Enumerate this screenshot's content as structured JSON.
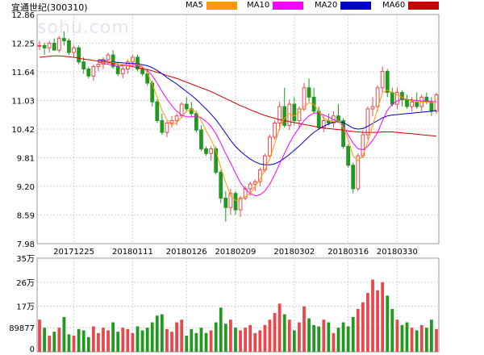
{
  "header": {
    "title": "宜通世纪",
    "code": "(300310)",
    "legend": [
      {
        "label": "MA5",
        "color": "#ff9900"
      },
      {
        "label": "MA10",
        "color": "#ff00ff"
      },
      {
        "label": "MA20",
        "color": "#0000cc"
      },
      {
        "label": "MA60",
        "color": "#cc0000"
      }
    ]
  },
  "watermark": "sohu.com",
  "colors": {
    "up": "#e8484c",
    "down": "#1f9a1f",
    "grid": "#d0d0d0"
  },
  "chart_data": {
    "type": "candlestick",
    "price_ticks": [
      "12.86",
      "12.25",
      "11.64",
      "11.03",
      "10.42",
      "9.81",
      "9.20",
      "8.59",
      "7.98"
    ],
    "price_range": [
      7.98,
      12.86
    ],
    "date_labels": [
      {
        "label": "20171225",
        "index": 7
      },
      {
        "label": "20180111",
        "index": 19
      },
      {
        "label": "20180126",
        "index": 30
      },
      {
        "label": "20180209",
        "index": 40
      },
      {
        "label": "20180302",
        "index": 52
      },
      {
        "label": "20180316",
        "index": 63
      },
      {
        "label": "20180330",
        "index": 73
      }
    ],
    "volume_ticks": [
      "35万",
      "26万",
      "17万",
      "89877",
      "0"
    ],
    "volume_range": [
      0,
      350000
    ],
    "candles": [
      [
        12.2,
        12.3,
        12.1,
        12.2
      ],
      [
        12.2,
        12.25,
        12.0,
        12.15
      ],
      [
        12.15,
        12.3,
        12.05,
        12.25
      ],
      [
        12.25,
        12.35,
        12.1,
        12.1
      ],
      [
        12.1,
        12.4,
        12.05,
        12.35
      ],
      [
        12.35,
        12.5,
        12.2,
        12.3
      ],
      [
        12.3,
        12.35,
        12.0,
        12.05
      ],
      [
        12.05,
        12.2,
        11.95,
        12.15
      ],
      [
        12.15,
        12.2,
        11.8,
        11.85
      ],
      [
        11.85,
        11.95,
        11.6,
        11.7
      ],
      [
        11.7,
        11.75,
        11.5,
        11.55
      ],
      [
        11.55,
        11.8,
        11.45,
        11.75
      ],
      [
        11.75,
        11.9,
        11.65,
        11.8
      ],
      [
        11.8,
        11.95,
        11.7,
        11.9
      ],
      [
        11.9,
        12.05,
        11.8,
        12.0
      ],
      [
        12.0,
        12.1,
        11.7,
        11.75
      ],
      [
        11.75,
        11.85,
        11.55,
        11.6
      ],
      [
        11.6,
        11.8,
        11.5,
        11.7
      ],
      [
        11.7,
        11.9,
        11.6,
        11.85
      ],
      [
        11.85,
        12.0,
        11.75,
        11.95
      ],
      [
        11.95,
        12.0,
        11.65,
        11.7
      ],
      [
        11.7,
        11.75,
        11.55,
        11.6
      ],
      [
        11.6,
        11.7,
        11.35,
        11.4
      ],
      [
        11.4,
        11.45,
        10.9,
        11.0
      ],
      [
        11.0,
        11.05,
        10.55,
        10.6
      ],
      [
        10.6,
        10.75,
        10.3,
        10.35
      ],
      [
        10.35,
        10.6,
        10.25,
        10.55
      ],
      [
        10.55,
        10.7,
        10.45,
        10.6
      ],
      [
        10.6,
        10.75,
        10.5,
        10.7
      ],
      [
        10.7,
        11.0,
        10.65,
        10.95
      ],
      [
        10.95,
        11.1,
        10.8,
        10.85
      ],
      [
        10.85,
        11.0,
        10.7,
        10.75
      ],
      [
        10.75,
        10.8,
        10.35,
        10.4
      ],
      [
        10.4,
        10.5,
        9.95,
        10.0
      ],
      [
        10.0,
        10.05,
        9.85,
        9.9
      ],
      [
        9.9,
        10.05,
        9.75,
        10.0
      ],
      [
        10.0,
        10.05,
        9.45,
        9.5
      ],
      [
        9.5,
        9.55,
        8.85,
        8.95
      ],
      [
        8.95,
        9.1,
        8.45,
        8.75
      ],
      [
        8.75,
        9.15,
        8.6,
        9.05
      ],
      [
        9.05,
        9.1,
        8.6,
        8.7
      ],
      [
        8.7,
        9.0,
        8.55,
        8.95
      ],
      [
        8.95,
        9.2,
        8.9,
        9.15
      ],
      [
        9.15,
        9.3,
        9.0,
        9.25
      ],
      [
        9.25,
        9.35,
        9.1,
        9.3
      ],
      [
        9.3,
        9.6,
        9.2,
        9.55
      ],
      [
        9.55,
        9.9,
        9.5,
        9.85
      ],
      [
        9.85,
        10.3,
        9.8,
        10.25
      ],
      [
        10.25,
        10.6,
        10.2,
        10.55
      ],
      [
        10.55,
        11.0,
        10.4,
        10.9
      ],
      [
        10.9,
        11.3,
        10.45,
        10.5
      ],
      [
        10.5,
        11.05,
        10.4,
        10.95
      ],
      [
        10.95,
        11.1,
        10.5,
        10.6
      ],
      [
        10.6,
        10.9,
        10.45,
        10.85
      ],
      [
        10.85,
        11.4,
        10.8,
        11.3
      ],
      [
        11.3,
        11.5,
        11.0,
        11.1
      ],
      [
        11.1,
        11.3,
        10.75,
        10.8
      ],
      [
        10.8,
        10.9,
        10.4,
        10.45
      ],
      [
        10.45,
        10.7,
        10.35,
        10.6
      ],
      [
        10.6,
        10.75,
        10.5,
        10.55
      ],
      [
        10.55,
        10.8,
        10.45,
        10.7
      ],
      [
        10.7,
        10.95,
        10.55,
        10.6
      ],
      [
        10.6,
        10.65,
        10.0,
        10.05
      ],
      [
        10.05,
        10.1,
        9.6,
        9.65
      ],
      [
        9.65,
        9.7,
        9.05,
        9.15
      ],
      [
        9.15,
        9.9,
        9.1,
        9.85
      ],
      [
        9.85,
        10.4,
        9.8,
        10.3
      ],
      [
        10.3,
        10.9,
        10.2,
        10.85
      ],
      [
        10.85,
        11.1,
        10.7,
        10.9
      ],
      [
        10.9,
        11.35,
        10.8,
        11.3
      ],
      [
        11.3,
        11.75,
        11.2,
        11.65
      ],
      [
        11.65,
        11.7,
        11.1,
        11.2
      ],
      [
        11.2,
        11.3,
        10.9,
        10.95
      ],
      [
        10.95,
        11.3,
        10.85,
        11.2
      ],
      [
        11.2,
        11.25,
        10.9,
        11.05
      ],
      [
        11.05,
        11.15,
        10.85,
        10.9
      ],
      [
        10.9,
        11.1,
        10.8,
        11.0
      ],
      [
        11.0,
        11.2,
        10.85,
        10.9
      ],
      [
        10.9,
        11.15,
        10.8,
        11.1
      ],
      [
        11.1,
        11.2,
        10.95,
        11.0
      ],
      [
        11.0,
        11.1,
        10.7,
        10.8
      ],
      [
        10.8,
        11.2,
        10.75,
        11.15
      ]
    ],
    "volume": [
      120000,
      90000,
      60000,
      75000,
      90000,
      130000,
      65000,
      60000,
      85000,
      80000,
      55000,
      95000,
      70000,
      90000,
      80000,
      110000,
      75000,
      90000,
      85000,
      70000,
      95000,
      80000,
      90000,
      110000,
      135000,
      140000,
      85000,
      75000,
      110000,
      120000,
      60000,
      85000,
      70000,
      90000,
      70000,
      80000,
      110000,
      165000,
      105000,
      120000,
      90000,
      80000,
      90000,
      100000,
      70000,
      80000,
      100000,
      120000,
      145000,
      180000,
      140000,
      120000,
      80000,
      110000,
      170000,
      125000,
      100000,
      95000,
      120000,
      110000,
      70000,
      90000,
      110000,
      95000,
      130000,
      160000,
      185000,
      220000,
      270000,
      230000,
      260000,
      210000,
      160000,
      120000,
      100000,
      110000,
      90000,
      80000,
      100000,
      90000,
      120000,
      85000
    ],
    "ma": {
      "MA60": [
        11.95,
        11.96,
        11.97,
        11.98,
        11.98,
        11.97,
        11.96,
        11.95,
        11.93,
        11.91,
        11.9,
        11.88,
        11.87,
        11.85,
        11.84,
        11.82,
        11.8,
        11.79,
        11.77,
        11.75,
        11.73,
        11.71,
        11.69,
        11.66,
        11.63,
        11.6,
        11.56,
        11.53,
        11.5,
        11.46,
        11.42,
        11.38,
        11.34,
        11.3,
        11.26,
        11.22,
        11.17,
        11.12,
        11.07,
        11.02,
        10.97,
        10.92,
        10.88,
        10.83,
        10.79,
        10.75,
        10.71,
        10.68,
        10.65,
        10.62,
        10.6,
        10.58,
        10.56,
        10.54,
        10.52,
        10.5,
        10.48,
        10.46,
        10.44,
        10.43,
        10.42,
        10.41,
        10.4,
        10.38,
        10.37,
        10.36,
        10.35,
        10.35,
        10.35,
        10.35,
        10.36,
        10.36,
        10.36,
        10.35,
        10.34,
        10.33,
        10.32,
        10.31,
        10.3,
        10.29,
        10.28,
        10.27
      ],
      "MA20": [
        null,
        null,
        null,
        null,
        null,
        null,
        null,
        null,
        null,
        null,
        null,
        null,
        11.9,
        11.88,
        11.86,
        11.85,
        11.84,
        11.83,
        11.82,
        11.82,
        11.81,
        11.79,
        11.77,
        11.73,
        11.67,
        11.6,
        11.52,
        11.45,
        11.38,
        11.3,
        11.22,
        11.14,
        11.05,
        10.95,
        10.85,
        10.74,
        10.62,
        10.48,
        10.33,
        10.18,
        10.05,
        9.95,
        9.86,
        9.78,
        9.72,
        9.68,
        9.66,
        9.66,
        9.68,
        9.73,
        9.8,
        9.88,
        9.97,
        10.06,
        10.16,
        10.26,
        10.35,
        10.42,
        10.48,
        10.53,
        10.57,
        10.58,
        10.56,
        10.5,
        10.44,
        10.42,
        10.43,
        10.48,
        10.54,
        10.6,
        10.66,
        10.7,
        10.72,
        10.73,
        10.74,
        10.75,
        10.76,
        10.77,
        10.78,
        10.79,
        10.8,
        10.82
      ],
      "MA10": [
        null,
        null,
        null,
        null,
        null,
        null,
        null,
        null,
        null,
        null,
        null,
        null,
        11.85,
        11.82,
        11.8,
        11.78,
        11.76,
        11.77,
        11.78,
        11.79,
        11.78,
        11.74,
        11.67,
        11.56,
        11.4,
        11.22,
        11.06,
        10.92,
        10.8,
        10.72,
        10.68,
        10.68,
        10.7,
        10.66,
        10.58,
        10.48,
        10.32,
        10.12,
        9.9,
        9.7,
        9.48,
        9.28,
        9.14,
        9.05,
        9.0,
        9.02,
        9.1,
        9.25,
        9.45,
        9.68,
        9.9,
        10.12,
        10.3,
        10.45,
        10.6,
        10.7,
        10.76,
        10.76,
        10.72,
        10.68,
        10.62,
        10.58,
        10.48,
        10.3,
        10.12,
        10.0,
        9.98,
        10.05,
        10.18,
        10.35,
        10.6,
        10.82,
        10.95,
        11.02,
        11.05,
        11.05,
        11.04,
        11.03,
        11.02,
        11.02,
        11.01,
        11.0
      ],
      "MA5": [
        null,
        null,
        null,
        null,
        null,
        null,
        null,
        null,
        null,
        null,
        null,
        null,
        11.78,
        11.82,
        11.86,
        11.84,
        11.8,
        11.78,
        11.76,
        11.8,
        11.8,
        11.75,
        11.62,
        11.38,
        11.1,
        10.82,
        10.62,
        10.5,
        10.56,
        10.68,
        10.8,
        10.84,
        10.78,
        10.6,
        10.38,
        10.2,
        9.95,
        9.6,
        9.28,
        9.0,
        8.9,
        8.92,
        8.98,
        9.05,
        9.2,
        9.35,
        9.55,
        9.8,
        10.1,
        10.45,
        10.65,
        10.75,
        10.7,
        10.78,
        10.9,
        10.98,
        10.95,
        10.8,
        10.65,
        10.6,
        10.58,
        10.6,
        10.45,
        10.2,
        9.85,
        9.75,
        9.85,
        10.15,
        10.5,
        10.85,
        11.2,
        11.25,
        11.2,
        11.15,
        11.1,
        11.05,
        11.02,
        11.0,
        11.0,
        11.0,
        10.98,
        11.02
      ]
    }
  }
}
